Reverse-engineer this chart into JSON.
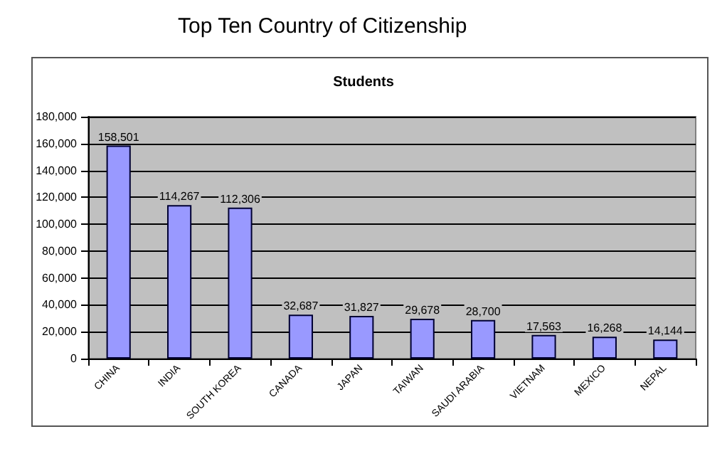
{
  "chart_data": {
    "type": "bar",
    "title": "Top Ten Country of Citizenship",
    "subtitle": "Students",
    "categories": [
      "CHINA",
      "INDIA",
      "SOUTH KOREA",
      "CANADA",
      "JAPAN",
      "TAIWAN",
      "SAUDI ARABIA",
      "VIETNAM",
      "MEXICO",
      "NEPAL"
    ],
    "values": [
      158501,
      114267,
      112306,
      32687,
      31827,
      29678,
      28700,
      17563,
      16268,
      14144
    ],
    "value_labels": [
      "158,501",
      "114,267",
      "112,306",
      "32,687",
      "31,827",
      "29,678",
      "28,700",
      "17,563",
      "16,268",
      "14,144"
    ],
    "color": "#9999ff",
    "ylim": [
      0,
      180000
    ],
    "yticks": [
      0,
      {
        "value": 20000,
        "label": "20,000"
      },
      {
        "value": 40000,
        "label": "40,000"
      },
      {
        "value": 60000,
        "label": "60,000"
      },
      {
        "value": 80000,
        "label": "80,000"
      },
      {
        "value": 100000,
        "label": "100,000"
      },
      {
        "value": 120000,
        "label": "120,000"
      },
      {
        "value": 140000,
        "label": "140,000"
      },
      {
        "value": 160000,
        "label": "160,000"
      },
      {
        "value": 180000,
        "label": "180,000"
      }
    ],
    "grid": "y"
  }
}
